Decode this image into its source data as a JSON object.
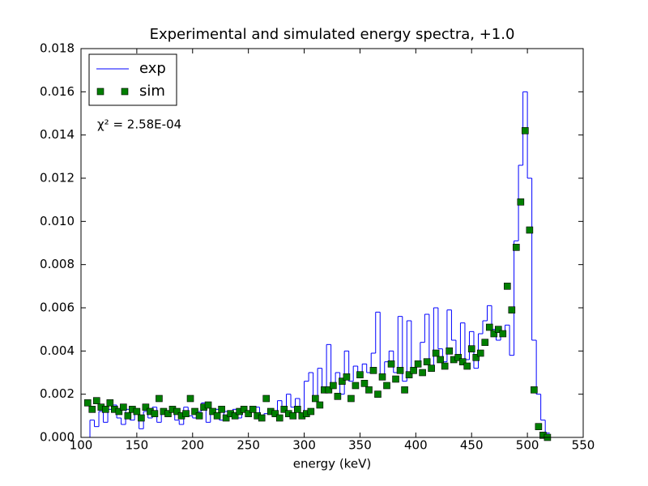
{
  "chart_data": {
    "type": "line",
    "title": "Experimental and simulated energy spectra, +1.0",
    "xlabel": "energy (keV)",
    "annotation": "χ² = 2.58E-04",
    "xlim": [
      100,
      550
    ],
    "xticks": [
      100,
      150,
      200,
      250,
      300,
      350,
      400,
      450,
      500,
      550
    ],
    "ylim": [
      0,
      0.018
    ],
    "yticks": [
      {
        "value": 0,
        "label": "0.000"
      },
      {
        "value": 0.002,
        "label": "0.002"
      },
      {
        "value": 0.004,
        "label": "0.004"
      },
      {
        "value": 0.006,
        "label": "0.006"
      },
      {
        "value": 0.008,
        "label": "0.008"
      },
      {
        "value": 0.01,
        "label": "0.010"
      },
      {
        "value": 0.012,
        "label": "0.012"
      },
      {
        "value": 0.014,
        "label": "0.014"
      },
      {
        "value": 0.016,
        "label": "0.016"
      },
      {
        "value": 0.018,
        "label": "0.018"
      }
    ],
    "grid": false,
    "legend": "upper left",
    "x": [
      106,
      110,
      114,
      118,
      122,
      126,
      130,
      134,
      138,
      142,
      146,
      150,
      154,
      158,
      162,
      166,
      170,
      174,
      178,
      182,
      186,
      190,
      194,
      198,
      202,
      206,
      210,
      214,
      218,
      222,
      226,
      230,
      234,
      238,
      242,
      246,
      250,
      254,
      258,
      262,
      266,
      270,
      274,
      278,
      282,
      286,
      290,
      294,
      298,
      302,
      306,
      310,
      314,
      318,
      322,
      326,
      330,
      334,
      338,
      342,
      346,
      350,
      354,
      358,
      362,
      366,
      370,
      374,
      378,
      382,
      386,
      390,
      394,
      398,
      402,
      406,
      410,
      414,
      418,
      422,
      426,
      430,
      434,
      438,
      442,
      446,
      450,
      454,
      458,
      462,
      466,
      470,
      474,
      478,
      482,
      486,
      490,
      494,
      498,
      502,
      506,
      510,
      514,
      518
    ],
    "series": [
      {
        "name": "exp",
        "style": "step",
        "color": "#0000ff",
        "values": [
          0.0,
          0.0008,
          0.0005,
          0.0012,
          0.0007,
          0.0013,
          0.0015,
          0.0009,
          0.0006,
          0.0013,
          0.0008,
          0.0011,
          0.0004,
          0.0012,
          0.0009,
          0.0014,
          0.0007,
          0.0012,
          0.001,
          0.0013,
          0.0008,
          0.0006,
          0.0014,
          0.001,
          0.0009,
          0.0012,
          0.0016,
          0.0007,
          0.0011,
          0.0013,
          0.0008,
          0.0012,
          0.001,
          0.0013,
          0.0009,
          0.0014,
          0.001,
          0.0012,
          0.0014,
          0.0009,
          0.0011,
          0.0013,
          0.001,
          0.0017,
          0.0012,
          0.002,
          0.0014,
          0.0018,
          0.0011,
          0.0026,
          0.003,
          0.0018,
          0.0032,
          0.0022,
          0.0043,
          0.0024,
          0.003,
          0.002,
          0.004,
          0.0026,
          0.0033,
          0.0028,
          0.0034,
          0.003,
          0.0039,
          0.0058,
          0.0029,
          0.0035,
          0.004,
          0.003,
          0.0056,
          0.0026,
          0.0054,
          0.003,
          0.0034,
          0.0044,
          0.0057,
          0.0033,
          0.006,
          0.0041,
          0.0035,
          0.0059,
          0.0045,
          0.0038,
          0.0053,
          0.0036,
          0.0049,
          0.0032,
          0.0048,
          0.0054,
          0.0061,
          0.005,
          0.0045,
          0.0047,
          0.0052,
          0.0038,
          0.0091,
          0.0126,
          0.016,
          0.012,
          0.0045,
          0.002,
          0.0008,
          0.0002
        ]
      },
      {
        "name": "sim",
        "style": "markers",
        "color": "#007f00",
        "values": [
          0.0016,
          0.0013,
          0.0017,
          0.0014,
          0.0013,
          0.0016,
          0.0013,
          0.0012,
          0.0014,
          0.001,
          0.0013,
          0.0012,
          0.0009,
          0.0014,
          0.0012,
          0.0011,
          0.0018,
          0.0012,
          0.0011,
          0.0013,
          0.0012,
          0.001,
          0.0011,
          0.0018,
          0.0012,
          0.001,
          0.0014,
          0.0015,
          0.0012,
          0.001,
          0.0013,
          0.0009,
          0.0011,
          0.001,
          0.0012,
          0.0013,
          0.0011,
          0.0013,
          0.001,
          0.0009,
          0.0018,
          0.0012,
          0.0011,
          0.0009,
          0.0013,
          0.0011,
          0.001,
          0.0013,
          0.001,
          0.0011,
          0.0012,
          0.0018,
          0.0015,
          0.0022,
          0.0022,
          0.0024,
          0.0019,
          0.0026,
          0.0028,
          0.0018,
          0.0024,
          0.0029,
          0.0025,
          0.0022,
          0.0031,
          0.002,
          0.0028,
          0.0024,
          0.0034,
          0.0027,
          0.0031,
          0.0022,
          0.0029,
          0.0031,
          0.0034,
          0.003,
          0.0035,
          0.0032,
          0.0039,
          0.0036,
          0.0033,
          0.004,
          0.0036,
          0.0037,
          0.0035,
          0.0033,
          0.0041,
          0.0037,
          0.0039,
          0.0044,
          0.0051,
          0.0048,
          0.005,
          0.0048,
          0.007,
          0.0059,
          0.0088,
          0.0109,
          0.0142,
          0.0096,
          0.0022,
          0.0005,
          0.0001,
          0.0
        ]
      }
    ]
  }
}
